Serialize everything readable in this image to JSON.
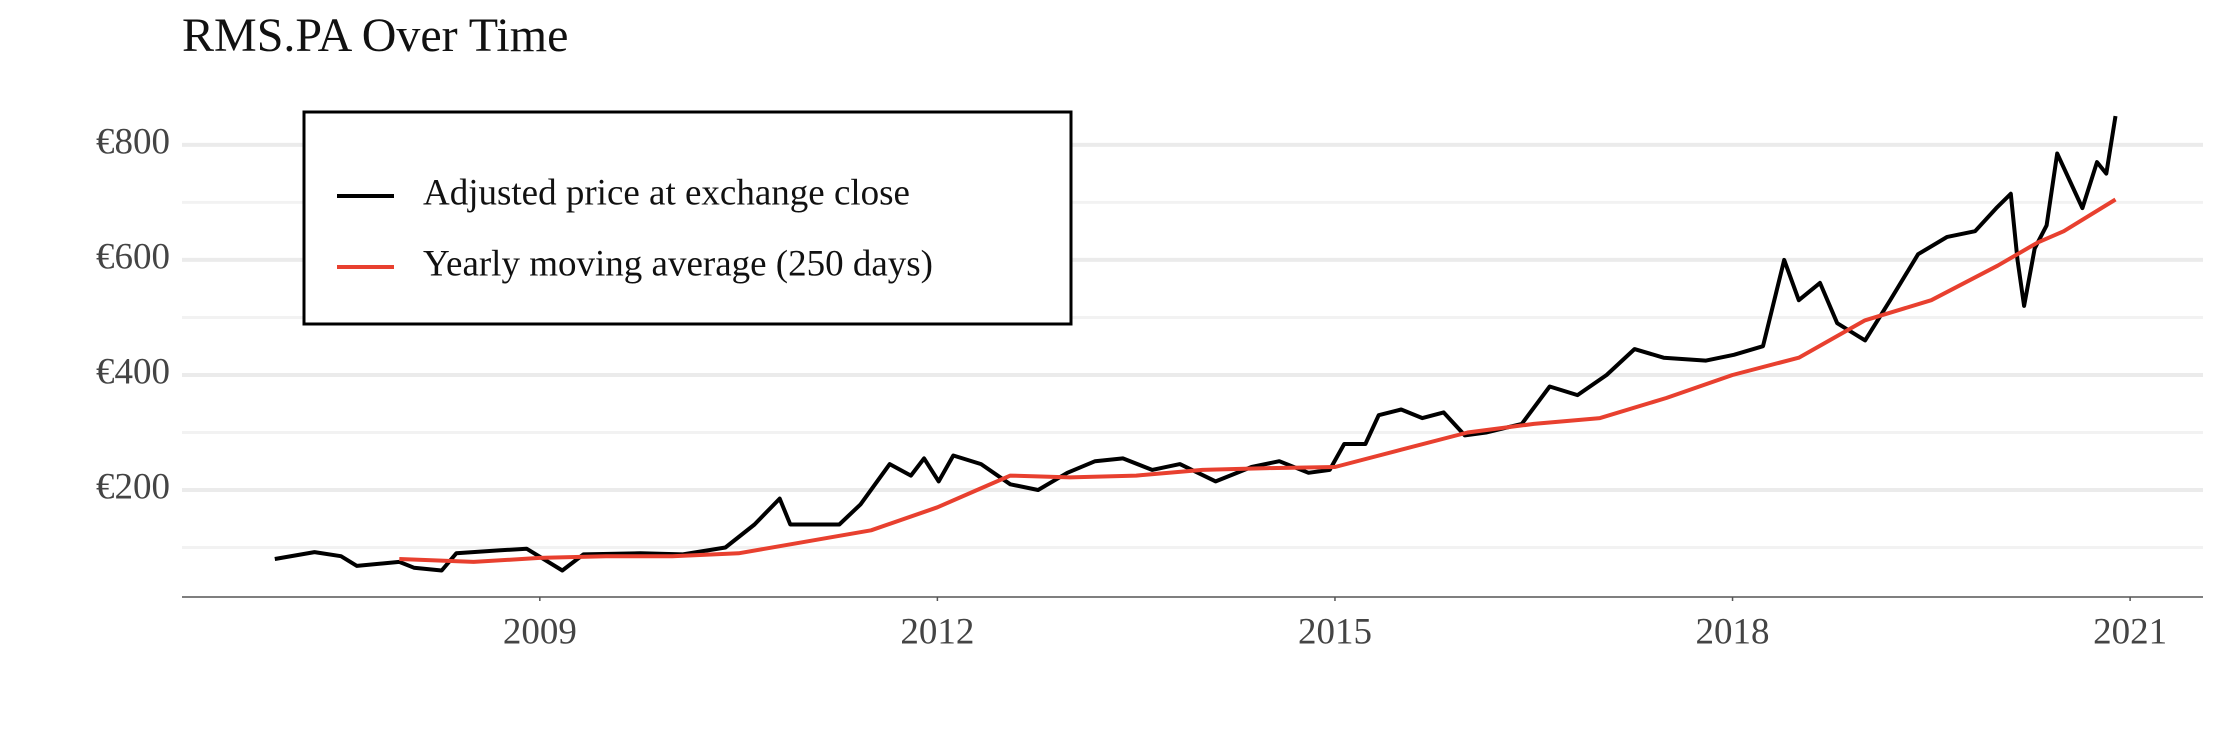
{
  "chart_data": {
    "type": "line",
    "title": "RMS.PA Over Time",
    "xlim": [
      2006.3,
      2021.55
    ],
    "xticks": [
      2009,
      2012,
      2015,
      2018,
      2021
    ],
    "ylim": [
      14,
      878
    ],
    "yticks": [
      {
        "value": 200,
        "label": "€200"
      },
      {
        "value": 400,
        "label": "€400"
      },
      {
        "value": 600,
        "label": "€600"
      },
      {
        "value": 800,
        "label": "€800"
      }
    ],
    "yminorticks": [
      100,
      300,
      500,
      700
    ],
    "grid": true,
    "legend": "top-left",
    "series": [
      {
        "name": "Adjusted price at exchange close",
        "color": "#000000",
        "x": [
          2007.0,
          2007.3,
          2007.5,
          2007.62,
          2007.94,
          2008.05,
          2008.26,
          2008.37,
          2008.69,
          2008.9,
          2009.17,
          2009.33,
          2009.76,
          2010.08,
          2010.4,
          2010.62,
          2010.81,
          2010.89,
          2011.26,
          2011.42,
          2011.64,
          2011.8,
          2011.9,
          2012.01,
          2012.12,
          2012.33,
          2012.55,
          2012.76,
          2012.98,
          2013.19,
          2013.4,
          2013.62,
          2013.83,
          2014.1,
          2014.37,
          2014.58,
          2014.8,
          2014.96,
          2015.07,
          2015.23,
          2015.33,
          2015.5,
          2015.66,
          2015.82,
          2015.98,
          2016.14,
          2016.41,
          2016.62,
          2016.83,
          2017.05,
          2017.26,
          2017.48,
          2017.8,
          2018.01,
          2018.23,
          2018.39,
          2018.5,
          2018.66,
          2018.79,
          2019.0,
          2019.19,
          2019.4,
          2019.62,
          2019.83,
          2019.99,
          2020.1,
          2020.15,
          2020.2,
          2020.28,
          2020.37,
          2020.45,
          2020.64,
          2020.75,
          2020.82,
          2020.89
        ],
        "values": [
          80,
          92,
          85,
          68,
          75,
          65,
          60,
          90,
          95,
          98,
          60,
          88,
          90,
          88,
          100,
          140,
          185,
          140,
          140,
          175,
          245,
          225,
          255,
          215,
          260,
          245,
          210,
          200,
          230,
          250,
          255,
          235,
          245,
          215,
          240,
          250,
          230,
          235,
          280,
          280,
          330,
          340,
          325,
          335,
          295,
          300,
          315,
          380,
          365,
          400,
          445,
          430,
          425,
          435,
          450,
          600,
          530,
          560,
          490,
          460,
          530,
          610,
          640,
          650,
          690,
          715,
          600,
          520,
          620,
          660,
          785,
          690,
          770,
          750,
          850
        ]
      },
      {
        "name": "Yearly moving average (250 days)",
        "color": "#e8402f",
        "x": [
          2007.94,
          2008.5,
          2009.0,
          2009.5,
          2010.0,
          2010.5,
          2011.0,
          2011.5,
          2012.0,
          2012.3,
          2012.55,
          2013.0,
          2013.5,
          2014.0,
          2014.5,
          2015.0,
          2015.5,
          2016.0,
          2016.5,
          2017.0,
          2017.5,
          2018.0,
          2018.5,
          2019.0,
          2019.5,
          2020.0,
          2020.3,
          2020.5,
          2020.89
        ],
        "values": [
          80,
          75,
          82,
          85,
          85,
          90,
          110,
          130,
          170,
          200,
          225,
          222,
          225,
          235,
          238,
          240,
          270,
          300,
          315,
          325,
          360,
          400,
          430,
          495,
          530,
          590,
          630,
          650,
          705
        ]
      }
    ]
  }
}
